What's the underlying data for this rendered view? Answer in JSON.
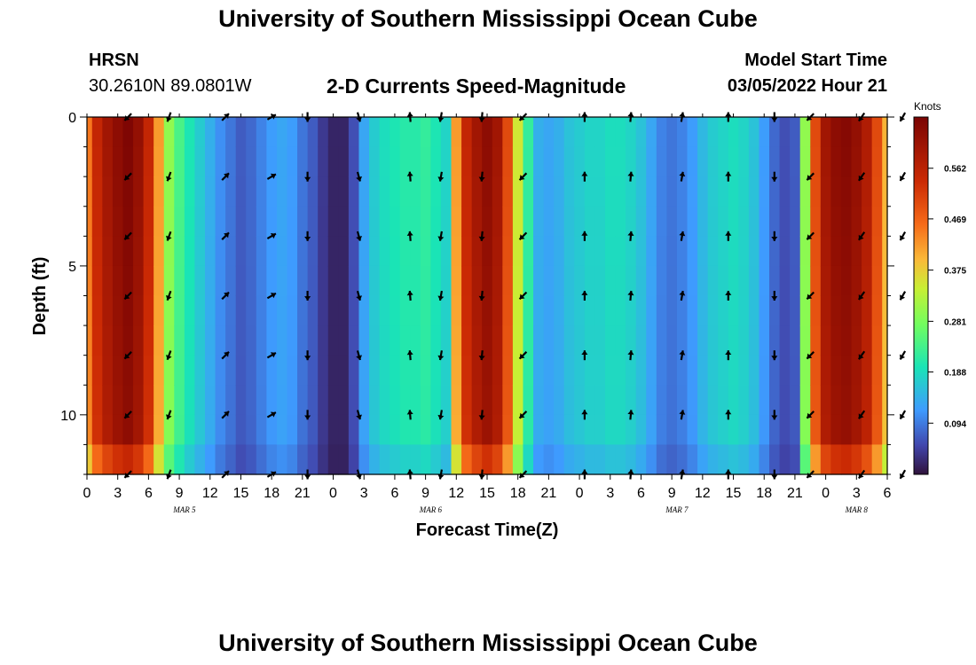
{
  "page": {
    "title": "University of Southern Mississippi Ocean Cube",
    "footer_title": "University of Southern Mississippi Ocean Cube",
    "station": {
      "name": "HRSN",
      "coords": "30.2610N  89.0801W"
    },
    "model": {
      "label": "Model Start Time",
      "value": "03/05/2022 Hour 21"
    }
  },
  "chart_data": {
    "type": "heatmap",
    "title": "2-D Currents Speed-Magnitude",
    "xlabel": "Forecast Time(Z)",
    "ylabel": "Depth (ft)",
    "colorbar_label": "Knots",
    "colorbar_ticks": [
      0.094,
      0.188,
      0.281,
      0.375,
      0.469,
      0.562
    ],
    "colorbar_range": [
      0,
      0.656
    ],
    "ylim": [
      0,
      12
    ],
    "yticks": [
      0,
      5,
      10
    ],
    "y_inverted": true,
    "x_tick_labels": [
      "0",
      "3",
      "6",
      "9",
      "12",
      "15",
      "18",
      "21",
      "0",
      "3",
      "6",
      "9",
      "12",
      "15",
      "18",
      "21",
      "0",
      "3",
      "6",
      "9",
      "12",
      "15",
      "18",
      "21",
      "0",
      "3",
      "6"
    ],
    "date_labels": [
      {
        "label": "MAR 5",
        "hour": 9.5
      },
      {
        "label": "MAR 6",
        "hour": 33.5
      },
      {
        "label": "MAR 7",
        "hour": 57.5
      },
      {
        "label": "MAR 8",
        "hour": 75
      }
    ],
    "x_hours": [
      0,
      1,
      2,
      3,
      4,
      5,
      6,
      7,
      8,
      9,
      10,
      11,
      12,
      13,
      14,
      15,
      16,
      17,
      18,
      19,
      20,
      21,
      22,
      23,
      24,
      25,
      26,
      27,
      28,
      29,
      30,
      31,
      32,
      33,
      34,
      35,
      36,
      37,
      38,
      39,
      40,
      41,
      42,
      43,
      44,
      45,
      46,
      47,
      48,
      49,
      50,
      51,
      52,
      53,
      54,
      55,
      56,
      57,
      58,
      59,
      60,
      61,
      62,
      63,
      64,
      65,
      66,
      67,
      68,
      69,
      70,
      71,
      72,
      73,
      74,
      75,
      76,
      77,
      78
    ],
    "surface_speed_knots": [
      0.45,
      0.55,
      0.6,
      0.63,
      0.65,
      0.62,
      0.55,
      0.42,
      0.3,
      0.24,
      0.2,
      0.17,
      0.14,
      0.11,
      0.09,
      0.07,
      0.08,
      0.1,
      0.12,
      0.13,
      0.12,
      0.09,
      0.07,
      0.04,
      0.02,
      0.02,
      0.06,
      0.13,
      0.17,
      0.19,
      0.2,
      0.21,
      0.21,
      0.22,
      0.2,
      0.18,
      0.42,
      0.55,
      0.6,
      0.63,
      0.6,
      0.5,
      0.35,
      0.22,
      0.14,
      0.13,
      0.14,
      0.16,
      0.17,
      0.18,
      0.18,
      0.19,
      0.19,
      0.18,
      0.16,
      0.13,
      0.1,
      0.09,
      0.1,
      0.12,
      0.15,
      0.17,
      0.18,
      0.19,
      0.18,
      0.16,
      0.12,
      0.08,
      0.06,
      0.07,
      0.3,
      0.5,
      0.6,
      0.63,
      0.64,
      0.62,
      0.58,
      0.5,
      0.4
    ],
    "vectors": {
      "hours": [
        4,
        8,
        13.5,
        18,
        21.5,
        26.5,
        31.5,
        34.5,
        38.5,
        42.5,
        48.5,
        53,
        58,
        62.5,
        67,
        70.5,
        75.5,
        79.5
      ],
      "depths_ft": [
        0,
        2,
        4,
        6,
        8,
        10,
        12
      ],
      "directions_deg": [
        225,
        200,
        45,
        60,
        180,
        165,
        355,
        190,
        185,
        225,
        0,
        5,
        10,
        0,
        180,
        225,
        215,
        210
      ]
    }
  }
}
